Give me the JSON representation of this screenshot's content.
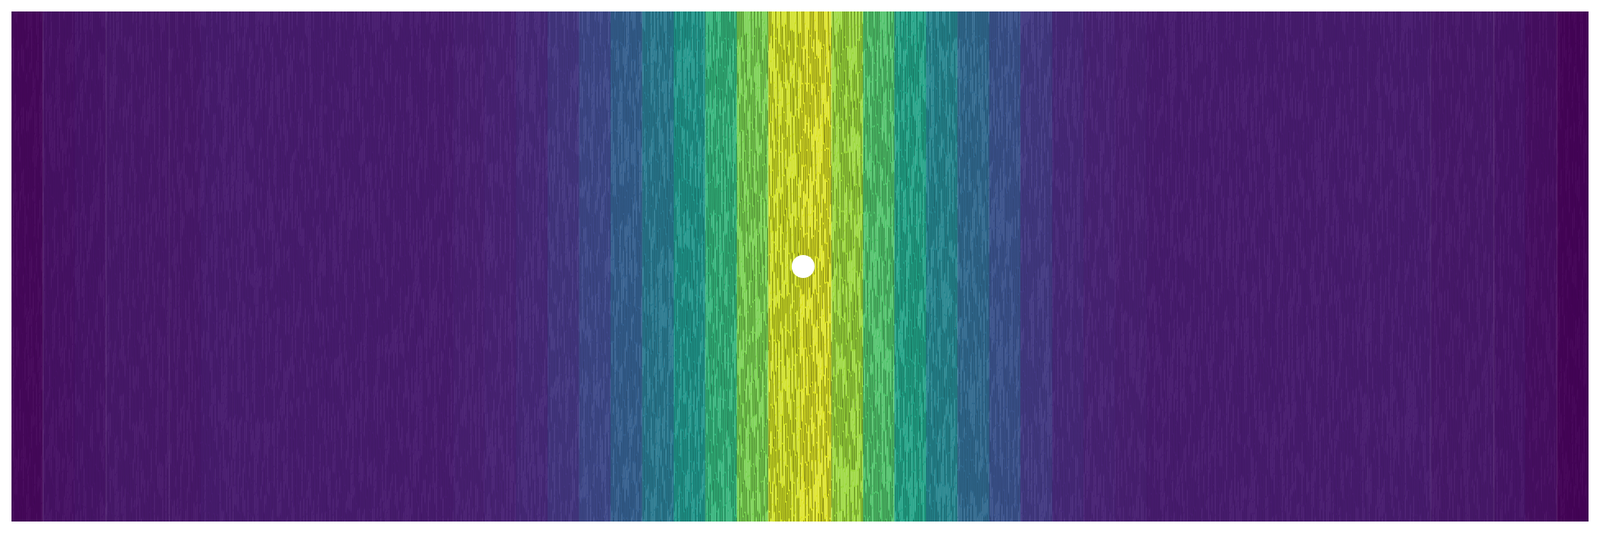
{
  "chart_data": {
    "type": "heatmap",
    "color": "viridis",
    "tick_labels": false,
    "grid": false,
    "xlim": [
      0,
      1
    ],
    "ylim": [
      0,
      1
    ],
    "color_range": [
      0,
      1
    ],
    "x": [
      0.01,
      0.03,
      0.05,
      0.07,
      0.09,
      0.11,
      0.13,
      0.15,
      0.17,
      0.19,
      0.21,
      0.23,
      0.25,
      0.27,
      0.29,
      0.31,
      0.33,
      0.35,
      0.37,
      0.39,
      0.41,
      0.43,
      0.45,
      0.47,
      0.49,
      0.51,
      0.53,
      0.55,
      0.57,
      0.59,
      0.61,
      0.63,
      0.65,
      0.67,
      0.69,
      0.71,
      0.73,
      0.75,
      0.77,
      0.79,
      0.81,
      0.83,
      0.85,
      0.87,
      0.89,
      0.91,
      0.93,
      0.95,
      0.97,
      0.99
    ],
    "values": [
      0.02,
      0.05,
      0.06,
      0.07,
      0.07,
      0.07,
      0.08,
      0.08,
      0.08,
      0.08,
      0.08,
      0.08,
      0.08,
      0.08,
      0.09,
      0.1,
      0.12,
      0.16,
      0.22,
      0.3,
      0.4,
      0.52,
      0.65,
      0.8,
      0.93,
      0.95,
      0.85,
      0.72,
      0.58,
      0.45,
      0.34,
      0.25,
      0.17,
      0.12,
      0.1,
      0.09,
      0.08,
      0.08,
      0.08,
      0.08,
      0.08,
      0.08,
      0.08,
      0.08,
      0.08,
      0.07,
      0.07,
      0.06,
      0.04,
      0.01
    ],
    "obstacle": {
      "x": 0.502,
      "y": 0.5
    }
  }
}
